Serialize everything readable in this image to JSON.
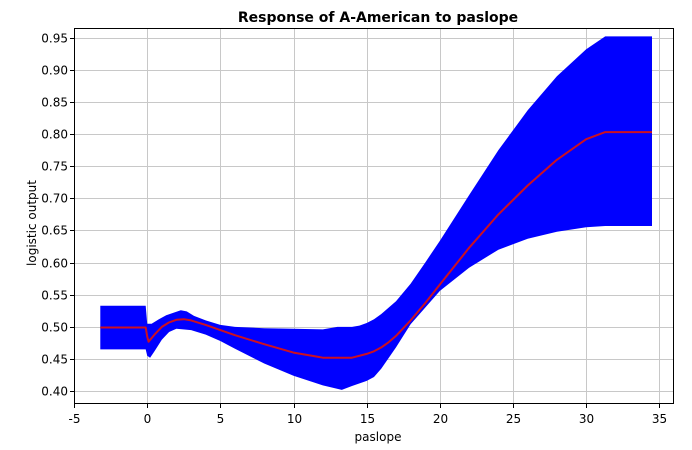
{
  "chart_data": {
    "type": "line",
    "title": "Response of A-American to paslope",
    "xlabel": "paslope",
    "ylabel": "logistic output",
    "xlim": [
      -5,
      36
    ],
    "ylim": [
      0.38,
      0.965
    ],
    "x_ticks": [
      -5,
      0,
      5,
      10,
      15,
      20,
      25,
      30,
      35
    ],
    "y_ticks": [
      0.4,
      0.45,
      0.5,
      0.55,
      0.6,
      0.65,
      0.7,
      0.75,
      0.8,
      0.85,
      0.9,
      0.95
    ],
    "x_tick_labels": [
      "-5",
      "0",
      "5",
      "10",
      "15",
      "20",
      "25",
      "30",
      "35"
    ],
    "y_tick_labels": [
      "0.40",
      "0.45",
      "0.50",
      "0.55",
      "0.60",
      "0.65",
      "0.70",
      "0.75",
      "0.80",
      "0.85",
      "0.90",
      "0.95"
    ],
    "grid": true,
    "band_color": "#0000ff",
    "line_color": "#cc1020",
    "series": [
      {
        "role": "mean",
        "x": [
          -3.2,
          -0.1,
          0.0,
          0.1,
          0.5,
          1.0,
          1.5,
          2.0,
          2.5,
          3.0,
          4.0,
          5.0,
          6.0,
          8.0,
          10.0,
          11.5,
          12.0,
          13.0,
          14.0,
          15.0,
          15.5,
          16.0,
          16.5,
          17.0,
          18.0,
          19.0,
          20.0,
          22.0,
          24.0,
          26.0,
          28.0,
          30.0,
          31.3,
          34.5
        ],
        "y": [
          0.499,
          0.499,
          0.485,
          0.477,
          0.488,
          0.5,
          0.507,
          0.511,
          0.512,
          0.51,
          0.503,
          0.495,
          0.487,
          0.473,
          0.46,
          0.454,
          0.452,
          0.452,
          0.452,
          0.458,
          0.462,
          0.468,
          0.476,
          0.486,
          0.51,
          0.537,
          0.566,
          0.623,
          0.675,
          0.72,
          0.76,
          0.792,
          0.803,
          0.803
        ]
      },
      {
        "role": "upper",
        "x": [
          -3.2,
          -0.1,
          0.0,
          0.3,
          0.8,
          1.3,
          1.8,
          2.3,
          2.7,
          3.2,
          4.0,
          5.0,
          6.0,
          8.0,
          10.0,
          12.0,
          13.0,
          14.0,
          14.5,
          15.0,
          15.5,
          16.0,
          17.0,
          18.0,
          19.0,
          20.0,
          22.0,
          24.0,
          26.0,
          28.0,
          30.0,
          31.3,
          34.5
        ],
        "y": [
          0.533,
          0.533,
          0.505,
          0.505,
          0.512,
          0.518,
          0.522,
          0.526,
          0.524,
          0.517,
          0.51,
          0.503,
          0.5,
          0.498,
          0.497,
          0.496,
          0.5,
          0.5,
          0.502,
          0.506,
          0.512,
          0.52,
          0.54,
          0.567,
          0.6,
          0.634,
          0.705,
          0.775,
          0.837,
          0.89,
          0.932,
          0.952,
          0.952
        ]
      },
      {
        "role": "lower",
        "x": [
          -3.2,
          -0.1,
          0.0,
          0.2,
          0.5,
          1.0,
          1.5,
          2.0,
          3.0,
          4.0,
          5.0,
          6.0,
          8.0,
          10.0,
          12.0,
          13.3,
          14.0,
          15.0,
          15.5,
          16.0,
          17.0,
          18.0,
          19.0,
          20.0,
          22.0,
          24.0,
          26.0,
          28.0,
          30.0,
          31.3,
          34.5
        ],
        "y": [
          0.465,
          0.465,
          0.455,
          0.452,
          0.462,
          0.48,
          0.492,
          0.497,
          0.495,
          0.488,
          0.478,
          0.466,
          0.443,
          0.424,
          0.409,
          0.402,
          0.408,
          0.416,
          0.422,
          0.435,
          0.468,
          0.504,
          0.53,
          0.556,
          0.592,
          0.62,
          0.637,
          0.648,
          0.655,
          0.657,
          0.657
        ]
      }
    ]
  }
}
